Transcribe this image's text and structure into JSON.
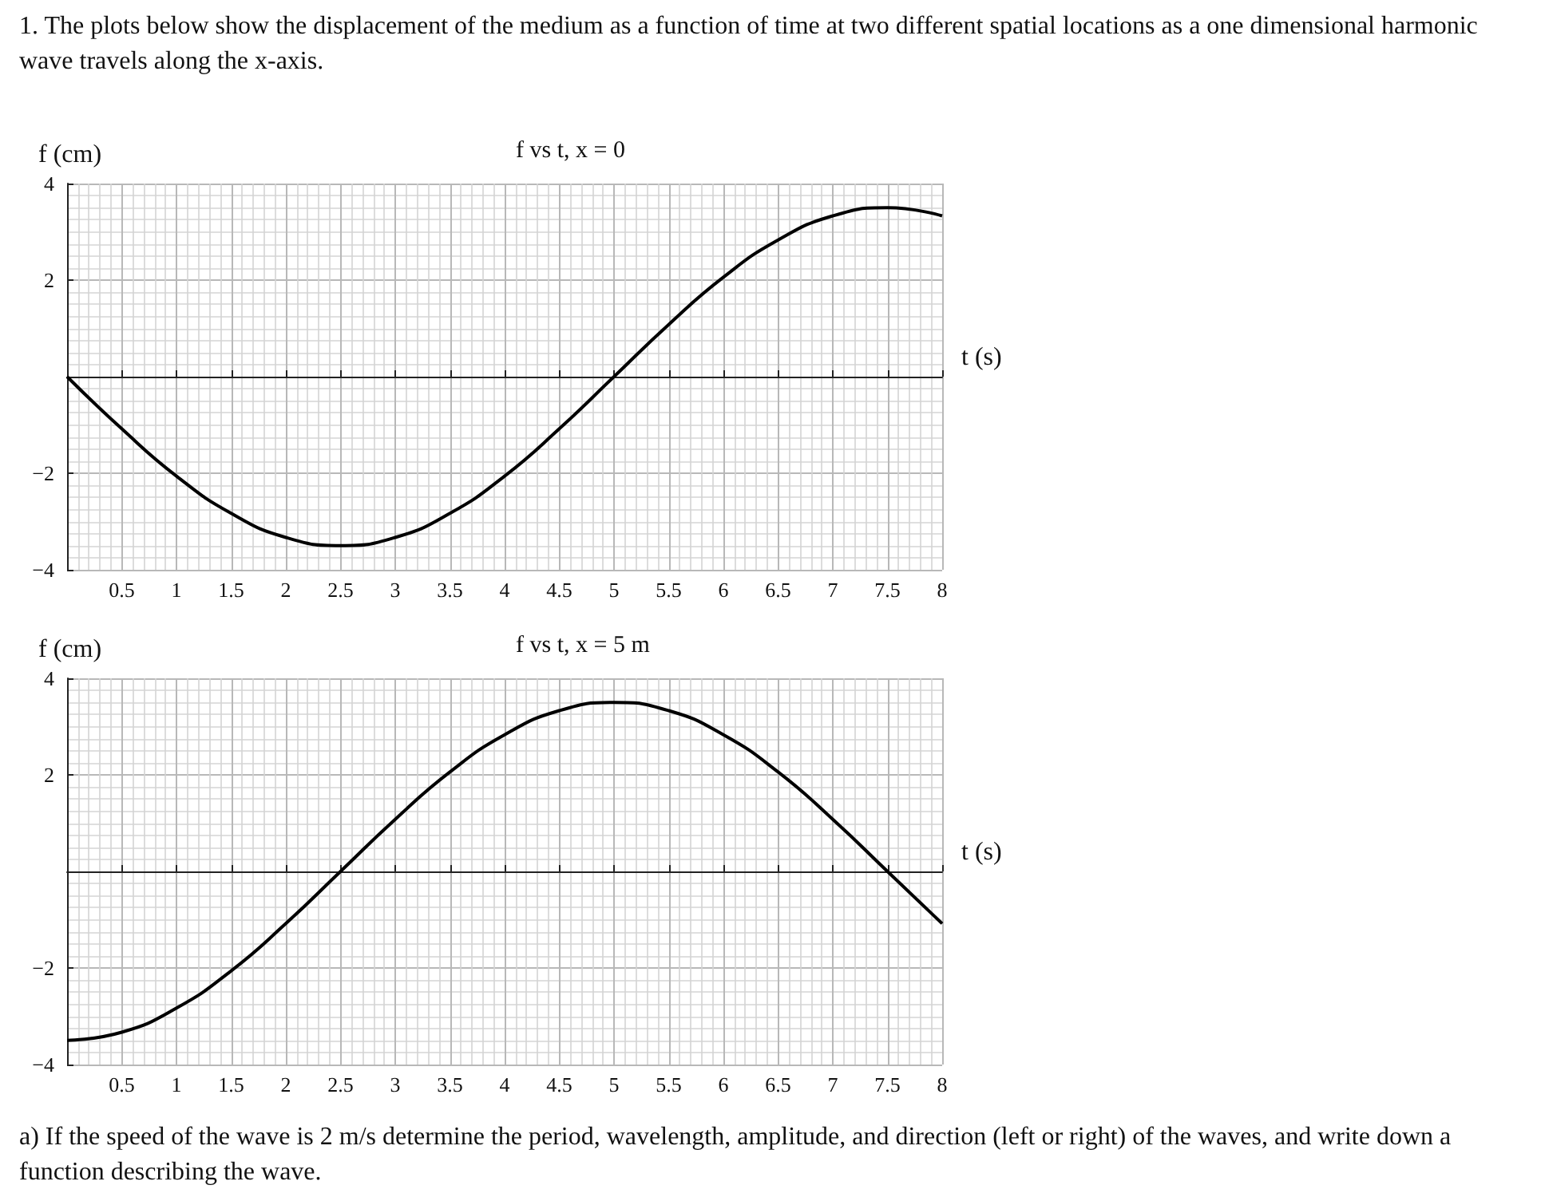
{
  "chart_data": [
    {
      "type": "line",
      "title": "f vs t, x = 0",
      "xlabel": "t (s)",
      "ylabel": "f (cm)",
      "annotations": [
        "1. The plots below show the displacement of the medium as a function of time at two different spatial locations as a one dimensional harmonic wave travels along the x-axis."
      ],
      "x": [
        0,
        0.5,
        1,
        1.5,
        2,
        2.5,
        3,
        3.5,
        4,
        4.5,
        5,
        5.5,
        6,
        6.5,
        7,
        7.5,
        8
      ],
      "series": [
        {
          "color": "#000000",
          "values": [
            0,
            -1.08,
            -2.06,
            -2.83,
            -3.33,
            -3.5,
            -3.33,
            -2.83,
            -2.06,
            -1.08,
            0,
            1.08,
            2.06,
            2.83,
            3.33,
            3.5,
            3.33
          ]
        }
      ],
      "xlim": [
        0,
        8
      ],
      "xticks": [
        0.5,
        1,
        1.5,
        2,
        2.5,
        3,
        3.5,
        4,
        4.5,
        5,
        5.5,
        6,
        6.5,
        7,
        7.5,
        8
      ],
      "ylim": [
        -4,
        4
      ],
      "yticks": [
        -4,
        -2,
        2,
        4
      ],
      "grid": true,
      "marker": "none",
      "line_style": "solid"
    },
    {
      "type": "line",
      "title": "f vs t, x = 5 m",
      "xlabel": "t (s)",
      "ylabel": "f (cm)",
      "annotations": [
        "a) If the speed of the wave is 2 m/s determine the period, wavelength, amplitude, and direction (left or right) of the waves, and write down a function describing the wave."
      ],
      "x": [
        0,
        0.5,
        1,
        1.5,
        2,
        2.5,
        3,
        3.5,
        4,
        4.5,
        5,
        5.5,
        6,
        6.5,
        7,
        7.5,
        8
      ],
      "series": [
        {
          "color": "#000000",
          "values": [
            -3.5,
            -3.33,
            -2.83,
            -2.06,
            -1.08,
            0,
            1.08,
            2.06,
            2.83,
            3.33,
            3.5,
            3.33,
            2.83,
            2.06,
            1.08,
            0,
            -1.08
          ]
        }
      ],
      "xlim": [
        0,
        8
      ],
      "xticks": [
        0.5,
        1,
        1.5,
        2,
        2.5,
        3,
        3.5,
        4,
        4.5,
        5,
        5.5,
        6,
        6.5,
        7,
        7.5,
        8
      ],
      "ylim": [
        -4,
        4
      ],
      "yticks": [
        -4,
        -2,
        2,
        4
      ],
      "grid": true,
      "marker": "none",
      "line_style": "solid"
    }
  ]
}
